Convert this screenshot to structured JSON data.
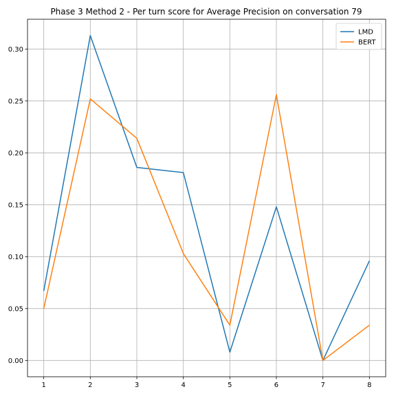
{
  "chart_data": {
    "type": "line",
    "title": "Phase 3 Method 2 - Per turn score for Average Precision on conversation 79",
    "xlabel": "",
    "ylabel": "",
    "x": [
      1,
      2,
      3,
      4,
      5,
      6,
      7,
      8
    ],
    "series": [
      {
        "name": "LMD",
        "color": "#1f77b4",
        "values": [
          0.067,
          0.313,
          0.186,
          0.181,
          0.008,
          0.148,
          0.0,
          0.096
        ]
      },
      {
        "name": "BERT",
        "color": "#ff7f0e",
        "values": [
          0.05,
          0.252,
          0.214,
          0.103,
          0.034,
          0.256,
          0.0,
          0.034
        ]
      }
    ],
    "xlim": [
      0.65,
      8.35
    ],
    "ylim": [
      -0.0157,
      0.3287
    ],
    "xticks": [
      1,
      2,
      3,
      4,
      5,
      6,
      7,
      8
    ],
    "yticks": [
      0.0,
      0.05,
      0.1,
      0.15,
      0.2,
      0.25,
      0.3
    ],
    "ytick_labels": [
      "0.00",
      "0.05",
      "0.10",
      "0.15",
      "0.20",
      "0.25",
      "0.30"
    ],
    "grid": true,
    "legend_position": "top-right"
  }
}
